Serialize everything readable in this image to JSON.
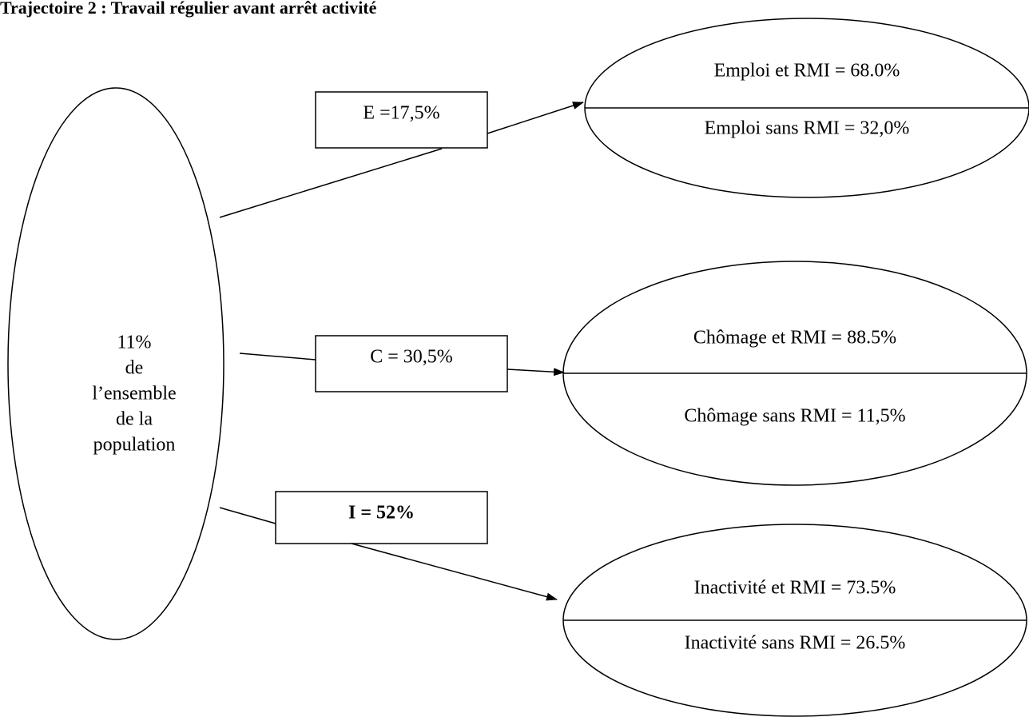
{
  "title": "Trajectoire 2 : Travail régulier avant arrêt activité",
  "source": {
    "lines": [
      "11%",
      "de",
      "l’ensemble",
      "de la",
      "population"
    ]
  },
  "branches": [
    {
      "label": "E =17,5%",
      "outcomes": [
        "Emploi et RMI = 68.0%",
        "Emploi sans RMI = 32,0%"
      ]
    },
    {
      "label": "C = 30,5%",
      "outcomes": [
        "Chômage et RMI = 88.5%",
        "Chômage sans RMI = 11,5%"
      ]
    },
    {
      "label": "I = 52%",
      "outcomes": [
        "Inactivité et RMI = 73.5%",
        "Inactivité sans RMI = 26.5%"
      ]
    }
  ]
}
